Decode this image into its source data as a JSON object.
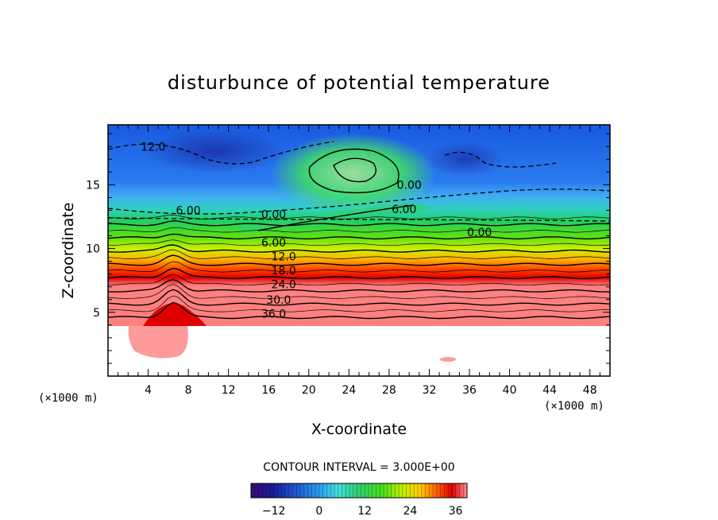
{
  "chart_data": {
    "type": "heatmap",
    "title": "disturbunce of potential temperature",
    "xlabel": "X-coordinate",
    "ylabel": "Z-coordinate",
    "x_unit": "(×1000 m)",
    "y_unit": "(×1000 m)",
    "xlim": [
      0,
      50
    ],
    "ylim": [
      0,
      19.7
    ],
    "x_ticks": [
      4,
      8,
      12,
      16,
      20,
      24,
      28,
      32,
      36,
      40,
      44,
      48
    ],
    "y_ticks": [
      5,
      10,
      15
    ],
    "contour_interval_text": "CONTOUR INTERVAL = 3.000E+00",
    "contour_labels": [
      {
        "text": "12.0",
        "x": 4.5,
        "z": 17.8
      },
      {
        "text": "6.00",
        "x": 8.0,
        "z": 12.8
      },
      {
        "text": "0.00",
        "x": 16.5,
        "z": 12.5
      },
      {
        "text": "0.00",
        "x": 30.0,
        "z": 14.8
      },
      {
        "text": "6.00",
        "x": 29.5,
        "z": 12.9
      },
      {
        "text": "0.00",
        "x": 37.0,
        "z": 11.1
      },
      {
        "text": "6.00",
        "x": 16.5,
        "z": 10.3
      },
      {
        "text": "12.0",
        "x": 17.5,
        "z": 9.2
      },
      {
        "text": "18.0",
        "x": 17.5,
        "z": 8.1
      },
      {
        "text": "24.0",
        "x": 17.5,
        "z": 7.0
      },
      {
        "text": "30.0",
        "x": 17.0,
        "z": 5.8
      },
      {
        "text": "36.0",
        "x": 16.5,
        "z": 4.7
      }
    ],
    "colorbar": {
      "range": [
        -18,
        39
      ],
      "ticks": [
        -12,
        0,
        12,
        24,
        36
      ],
      "tick_labels": [
        "−12",
        "0",
        "12",
        "24",
        "36"
      ]
    },
    "colormap": [
      "#3a0a6e",
      "#1a1a9a",
      "#1f5fd8",
      "#2aa0f0",
      "#40e0e0",
      "#30d070",
      "#40e020",
      "#c0f000",
      "#ffd000",
      "#ff6000",
      "#e00000",
      "#ff9090"
    ]
  }
}
